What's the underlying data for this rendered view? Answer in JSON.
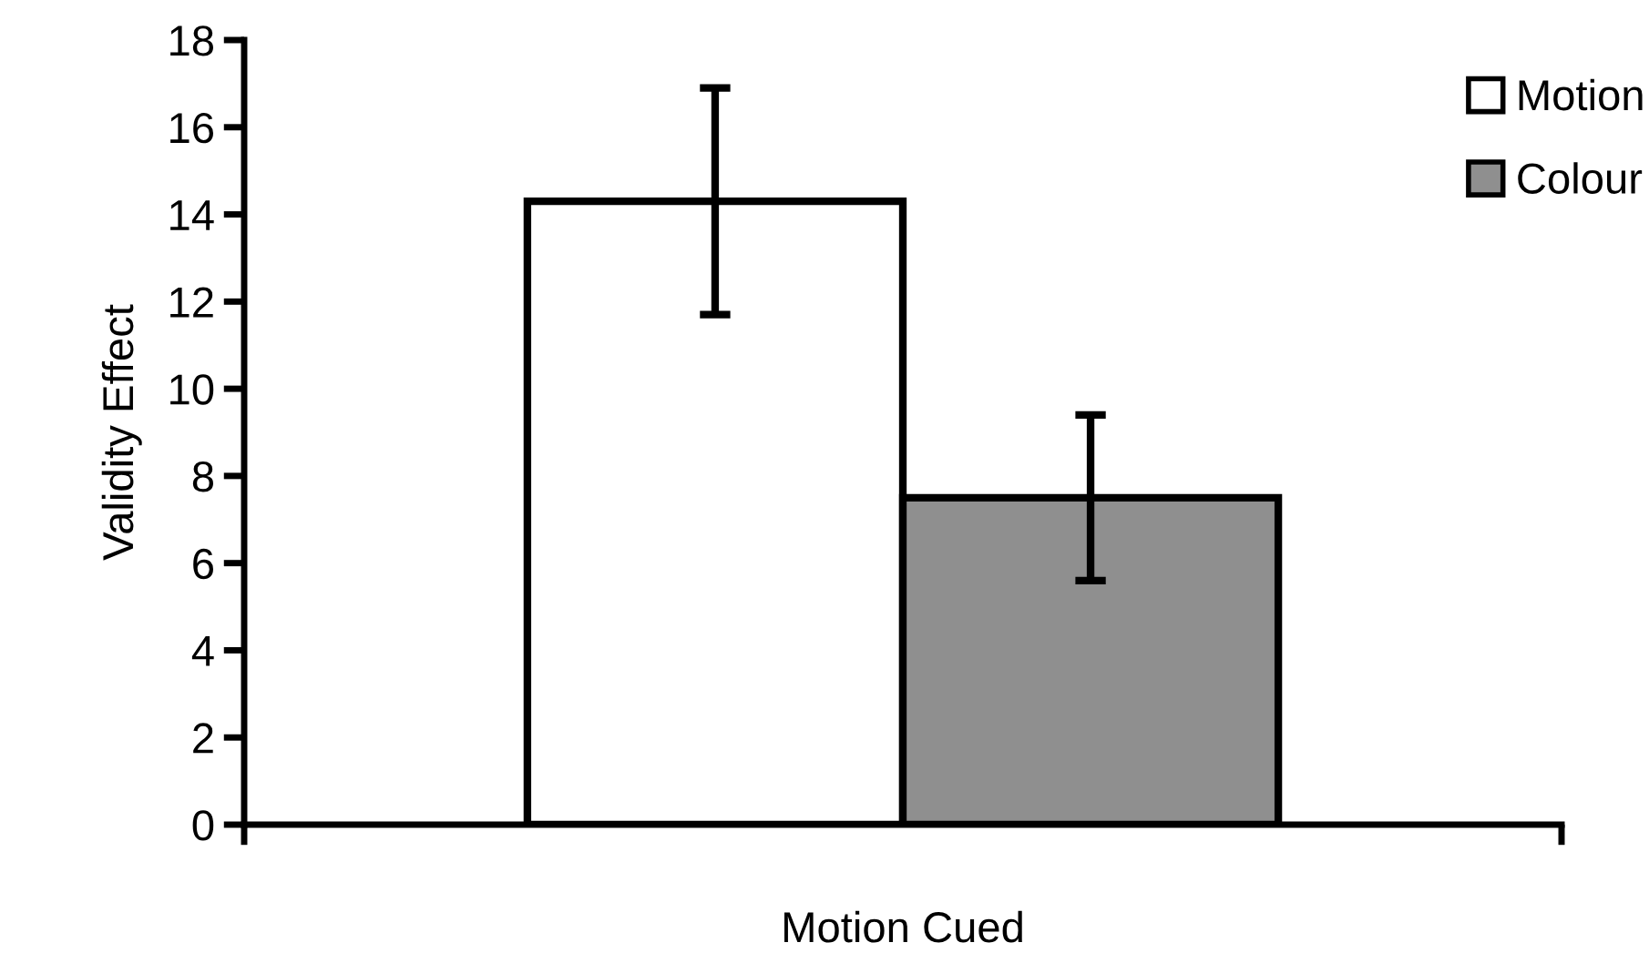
{
  "chart_data": {
    "type": "bar",
    "categories": [
      "Motion Cued"
    ],
    "ylabel": "Validity Effect",
    "series": [
      {
        "name": "Motion",
        "color": "#ffffff",
        "values": [
          14.3
        ],
        "errors": [
          2.6
        ]
      },
      {
        "name": "Colour",
        "color": "#8f8f8f",
        "values": [
          7.5
        ],
        "errors": [
          1.9
        ]
      }
    ],
    "ylim": [
      0,
      18
    ],
    "yticks": [
      0,
      2,
      4,
      6,
      8,
      10,
      12,
      14,
      16,
      18
    ],
    "grid": false,
    "legend": "top right"
  }
}
